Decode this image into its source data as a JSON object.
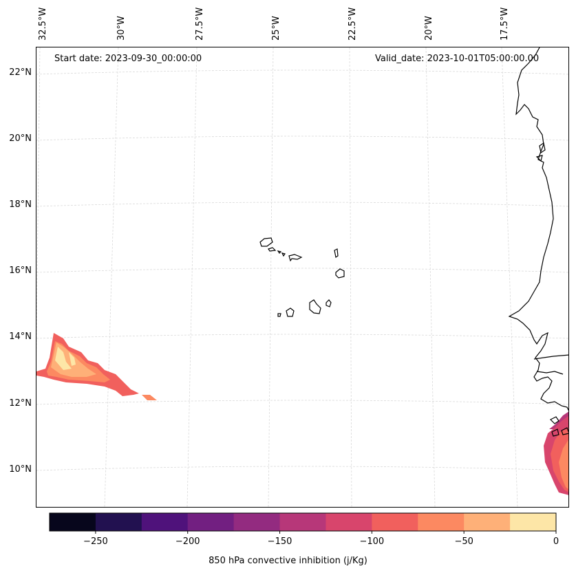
{
  "header": {
    "start_date": "Start date: 2023-09-30_00:00:00",
    "valid_date": "Valid_date: 2023-10-01T05:00:00.00"
  },
  "longitude_labels": [
    "32.5°W",
    "30°W",
    "27.5°W",
    "25°W",
    "22.5°W",
    "20°W",
    "17.5°W"
  ],
  "latitude_labels": [
    "22°N",
    "20°N",
    "18°N",
    "16°N",
    "14°N",
    "12°N",
    "10°N"
  ],
  "colorbar": {
    "label": "850 hPa convective inhibition (j/Kg)",
    "tick_labels": [
      "−250",
      "−200",
      "−150",
      "−100",
      "−50",
      "0"
    ],
    "tick_values": [
      -250,
      -200,
      -150,
      -100,
      -50,
      0
    ],
    "bounds": [
      -275,
      -250,
      -225,
      -200,
      -175,
      -150,
      -125,
      -100,
      -75,
      -50,
      -25,
      0
    ],
    "colors": [
      "#07061c",
      "#221150",
      "#4f127b",
      "#721f81",
      "#932b80",
      "#b73779",
      "#d8456c",
      "#f1605d",
      "#fc8961",
      "#feb078",
      "#fde6a7"
    ]
  },
  "map": {
    "features": [
      "cape-verde-islands",
      "west-african-coastline",
      "cin-contours-west",
      "cin-contours-southeast"
    ]
  }
}
